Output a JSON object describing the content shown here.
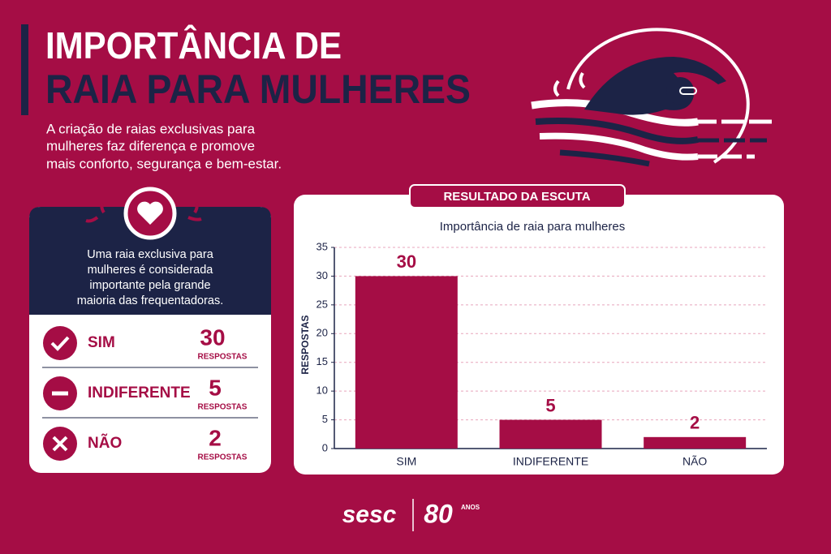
{
  "header": {
    "title_line1": "IMPORTÂNCIA DE",
    "title_line2": "RAIA PARA MULHERES",
    "subtitle_lines": [
      "A criação de raias exclusivas para",
      "mulheres faz diferença e promove",
      "mais conforto, segurança e bem-estar."
    ]
  },
  "card": {
    "description_lines": [
      "Uma raia exclusiva para",
      "mulheres é considerada",
      "importante pela grande",
      "maioria das frequentadoras."
    ],
    "rows": [
      {
        "label": "SIM",
        "count": "30",
        "unit": "RESPOSTAS"
      },
      {
        "label": "INDIFERENTE",
        "count": "5",
        "unit": "RESPOSTAS"
      },
      {
        "label": "NÃO",
        "count": "2",
        "unit": "RESPOSTAS"
      }
    ]
  },
  "panel_tab": "RESULTADO DA ESCUTA",
  "chart_data": {
    "type": "bar",
    "title": "Importância de raia para mulheres",
    "y_label": "RESPOSTAS",
    "categories": [
      "SIM",
      "INDIFERENTE",
      "NÃO"
    ],
    "values": [
      30,
      5,
      2
    ],
    "color": "#a50d45",
    "ylim": [
      0,
      35
    ],
    "yticks": [
      0,
      5,
      10,
      15,
      20,
      25,
      30,
      35
    ],
    "grid": true
  },
  "footer": {
    "brand": "sesc",
    "anniversary": "80",
    "anniversary_unit": "ANOS"
  }
}
